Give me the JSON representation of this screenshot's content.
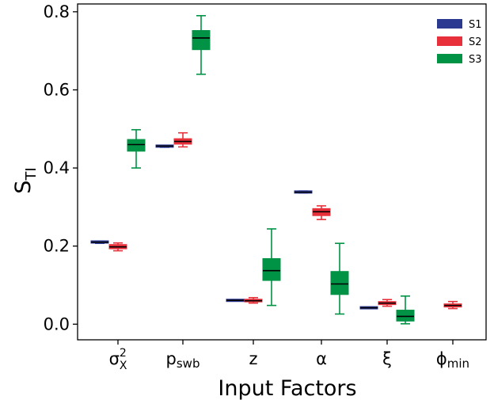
{
  "chart_data": {
    "type": "box",
    "xlabel": "Input Factors",
    "ylabel": {
      "main": "S",
      "sub": "TI"
    },
    "ylim": [
      -0.04,
      0.82
    ],
    "yticks": [
      0.0,
      0.2,
      0.4,
      0.6,
      0.8
    ],
    "ytick_labels": [
      "0.0",
      "0.2",
      "0.4",
      "0.6",
      "0.8"
    ],
    "grid": false,
    "legend_position": "top-right",
    "categories": [
      {
        "main": "σ",
        "sup": "2",
        "sub": "X"
      },
      {
        "main": "p",
        "sup": "",
        "sub": "swb"
      },
      {
        "main": "z",
        "sup": "",
        "sub": ""
      },
      {
        "main": "α",
        "sup": "",
        "sub": ""
      },
      {
        "main": "ξ",
        "sup": "",
        "sub": ""
      },
      {
        "main": "ϕ",
        "sup": "",
        "sub": "min"
      }
    ],
    "series": [
      {
        "name": "S1",
        "color": "#2b3990",
        "boxes": [
          {
            "min": 0.207,
            "q1": 0.209,
            "median": 0.21,
            "q3": 0.212,
            "max": 0.213
          },
          {
            "min": 0.453,
            "q1": 0.455,
            "median": 0.456,
            "q3": 0.457,
            "max": 0.458
          },
          {
            "min": 0.059,
            "q1": 0.06,
            "median": 0.061,
            "q3": 0.062,
            "max": 0.063
          },
          {
            "min": 0.336,
            "q1": 0.337,
            "median": 0.338,
            "q3": 0.34,
            "max": 0.341
          },
          {
            "min": 0.04,
            "q1": 0.041,
            "median": 0.042,
            "q3": 0.043,
            "max": 0.044
          },
          null
        ]
      },
      {
        "name": "S2",
        "color": "#e8303a",
        "boxes": [
          {
            "min": 0.188,
            "q1": 0.193,
            "median": 0.198,
            "q3": 0.204,
            "max": 0.208
          },
          {
            "min": 0.454,
            "q1": 0.461,
            "median": 0.468,
            "q3": 0.475,
            "max": 0.49
          },
          {
            "min": 0.054,
            "q1": 0.057,
            "median": 0.06,
            "q3": 0.064,
            "max": 0.068
          },
          {
            "min": 0.268,
            "q1": 0.278,
            "median": 0.288,
            "q3": 0.296,
            "max": 0.303
          },
          {
            "min": 0.046,
            "q1": 0.05,
            "median": 0.054,
            "q3": 0.058,
            "max": 0.063
          },
          {
            "min": 0.04,
            "q1": 0.044,
            "median": 0.048,
            "q3": 0.052,
            "max": 0.058
          }
        ]
      },
      {
        "name": "S3",
        "color": "#009245",
        "boxes": [
          {
            "min": 0.4,
            "q1": 0.443,
            "median": 0.46,
            "q3": 0.473,
            "max": 0.498
          },
          {
            "min": 0.64,
            "q1": 0.703,
            "median": 0.733,
            "q3": 0.752,
            "max": 0.79
          },
          {
            "min": 0.048,
            "q1": 0.112,
            "median": 0.137,
            "q3": 0.168,
            "max": 0.244
          },
          {
            "min": 0.026,
            "q1": 0.076,
            "median": 0.103,
            "q3": 0.135,
            "max": 0.207
          },
          {
            "min": 0.001,
            "q1": 0.008,
            "median": 0.02,
            "q3": 0.036,
            "max": 0.072
          },
          null
        ]
      }
    ]
  }
}
